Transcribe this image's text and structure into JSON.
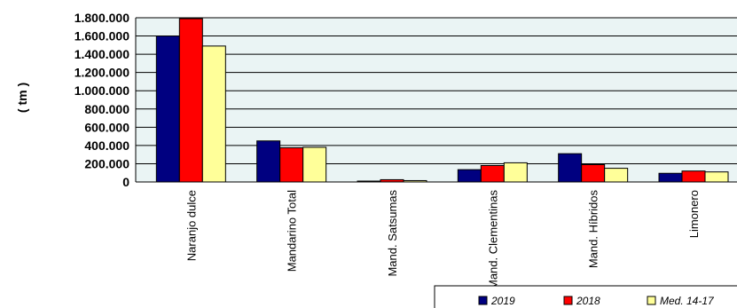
{
  "chart_data": {
    "type": "bar",
    "title": "",
    "xlabel": "",
    "ylabel": "( tm )",
    "ylim": [
      0,
      1800000
    ],
    "yticks": [
      0,
      200000,
      400000,
      600000,
      800000,
      1000000,
      1200000,
      1400000,
      1600000,
      1800000
    ],
    "ytick_labels": [
      "0",
      "200.000",
      "400.000",
      "600.000",
      "800.000",
      "1.000.000",
      "1.200.000",
      "1.400.000",
      "1.600.000",
      "1.800.000"
    ],
    "grid": true,
    "legend_position": "bottom-right",
    "categories": [
      "Naranjo dulce",
      "Mandarino Total",
      "Mand. Satsumas",
      "Mand. Clementinas",
      "Mand. Híbridos",
      "Limonero"
    ],
    "category_labels": [
      "Naranjo dulce",
      "Mandarino Total",
      "Mand. Satsumas",
      "Mand. Clementinas",
      "Mand. Híbridos",
      "Limonero"
    ],
    "series": [
      {
        "name": "2019",
        "color": "#000080",
        "values": [
          1600000,
          450000,
          5000,
          135000,
          310000,
          95000
        ]
      },
      {
        "name": "2018",
        "color": "#ff0000",
        "values": [
          1790000,
          375000,
          25000,
          180000,
          190000,
          120000
        ]
      },
      {
        "name": "Med. 14-17",
        "color": "#ffff99",
        "values": [
          1490000,
          380000,
          15000,
          210000,
          150000,
          110000
        ]
      }
    ]
  }
}
